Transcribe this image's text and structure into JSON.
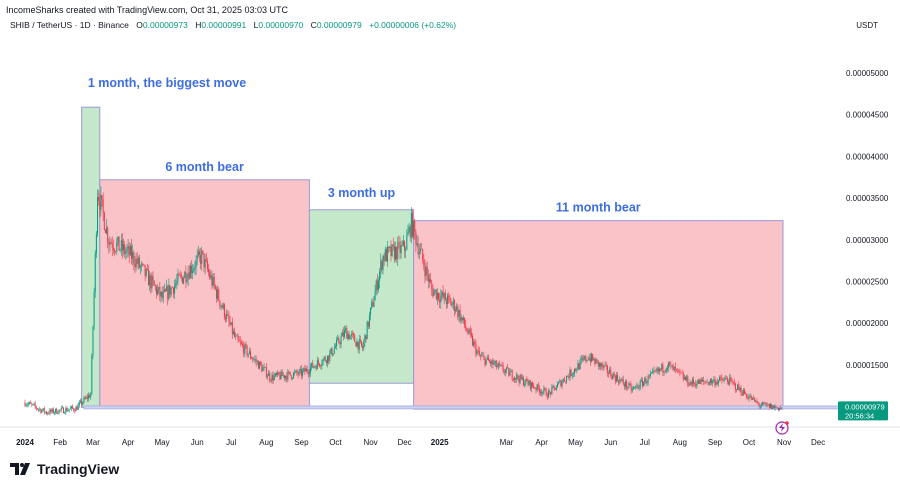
{
  "header": {
    "credit": "IncomeSharks created with TradingView.com, Oct 31, 2025 03:03 UTC",
    "symbol": "SHIB / TetherUS · 1D · Binance",
    "open_label": "O",
    "open": "0.00000973",
    "high_label": "H",
    "high": "0.00000991",
    "low_label": "L",
    "low": "0.00000970",
    "close_label": "C",
    "close": "0.00000979",
    "change": "+0.00000006 (+0.62%)",
    "currency": "USDT"
  },
  "price_tag": {
    "price": "0.00000979",
    "countdown": "20:56:34"
  },
  "branding": {
    "logo_text": "TradingView"
  },
  "colors": {
    "up": "#089981",
    "down": "#f23645",
    "bull_box": "#b7e1bd",
    "bear_box": "#f7b4b9",
    "box_border": "#9a9ad6",
    "annotation": "#3d6ee0"
  },
  "chart_data": {
    "type": "candlestick",
    "y_ticks": [
      "0.00005000",
      "0.00004500",
      "0.00004000",
      "0.00003500",
      "0.00003000",
      "0.00002500",
      "0.00002000",
      "0.00001500"
    ],
    "ylim": [
      8.5e-06,
      5.18e-05
    ],
    "x_ticks": [
      "2024",
      "Feb",
      "Mar",
      "Apr",
      "May",
      "Jun",
      "Jul",
      "Aug",
      "Sep",
      "Oct",
      "Nov",
      "Dec",
      "2025",
      "Mar",
      "Apr",
      "May",
      "Jun",
      "Jul",
      "Aug",
      "Sep",
      "Oct",
      "Nov",
      "Dec"
    ],
    "x_tick_dates": [
      "2024-01-01",
      "2024-02-01",
      "2024-03-01",
      "2024-04-01",
      "2024-05-01",
      "2024-06-01",
      "2024-07-01",
      "2024-08-01",
      "2024-09-01",
      "2024-10-01",
      "2024-11-01",
      "2024-12-01",
      "2025-01-01",
      "2025-03-01",
      "2025-04-01",
      "2025-05-01",
      "2025-06-01",
      "2025-07-01",
      "2025-08-01",
      "2025-09-01",
      "2025-10-01",
      "2025-11-01",
      "2025-12-01"
    ],
    "approx_close_path": [
      [
        "2024-01-01",
        10.5
      ],
      [
        "2024-01-20",
        9.3
      ],
      [
        "2024-02-15",
        9.8
      ],
      [
        "2024-02-28",
        11.5
      ],
      [
        "2024-03-05",
        36
      ],
      [
        "2024-03-15",
        30
      ],
      [
        "2024-04-05",
        28
      ],
      [
        "2024-05-01",
        23
      ],
      [
        "2024-06-05",
        28
      ],
      [
        "2024-07-05",
        18
      ],
      [
        "2024-08-05",
        13.5
      ],
      [
        "2024-09-01",
        14
      ],
      [
        "2024-09-25",
        16
      ],
      [
        "2024-10-10",
        19
      ],
      [
        "2024-10-25",
        17
      ],
      [
        "2024-11-12",
        28
      ],
      [
        "2024-12-01",
        29
      ],
      [
        "2024-12-07",
        32
      ],
      [
        "2024-12-25",
        24
      ],
      [
        "2025-01-15",
        22
      ],
      [
        "2025-02-05",
        16
      ],
      [
        "2025-03-10",
        13.5
      ],
      [
        "2025-04-07",
        11.5
      ],
      [
        "2025-05-12",
        16
      ],
      [
        "2025-06-20",
        12
      ],
      [
        "2025-07-21",
        15
      ],
      [
        "2025-08-10",
        12.8
      ],
      [
        "2025-09-12",
        13.2
      ],
      [
        "2025-10-10",
        10.2
      ],
      [
        "2025-10-31",
        9.79
      ]
    ],
    "price_unit_scale": "1e-6",
    "annotations": [
      {
        "label": "1 month, the biggest move",
        "kind": "bull",
        "from": "2024-02-20",
        "to": "2024-03-07",
        "low": 9.9,
        "high": 45.9
      },
      {
        "label": "6 month bear",
        "kind": "bear",
        "from": "2024-03-07",
        "to": "2024-09-08",
        "low": 10.0,
        "high": 37.2
      },
      {
        "label": "3 month up",
        "kind": "bull",
        "from": "2024-09-08",
        "to": "2024-12-09",
        "low": 12.8,
        "high": 33.6
      },
      {
        "label": "11 month bear",
        "kind": "bear",
        "from": "2024-12-09",
        "to": "2025-10-31",
        "low": 9.7,
        "high": 32.3
      }
    ],
    "horizontal_line": 9.9
  }
}
